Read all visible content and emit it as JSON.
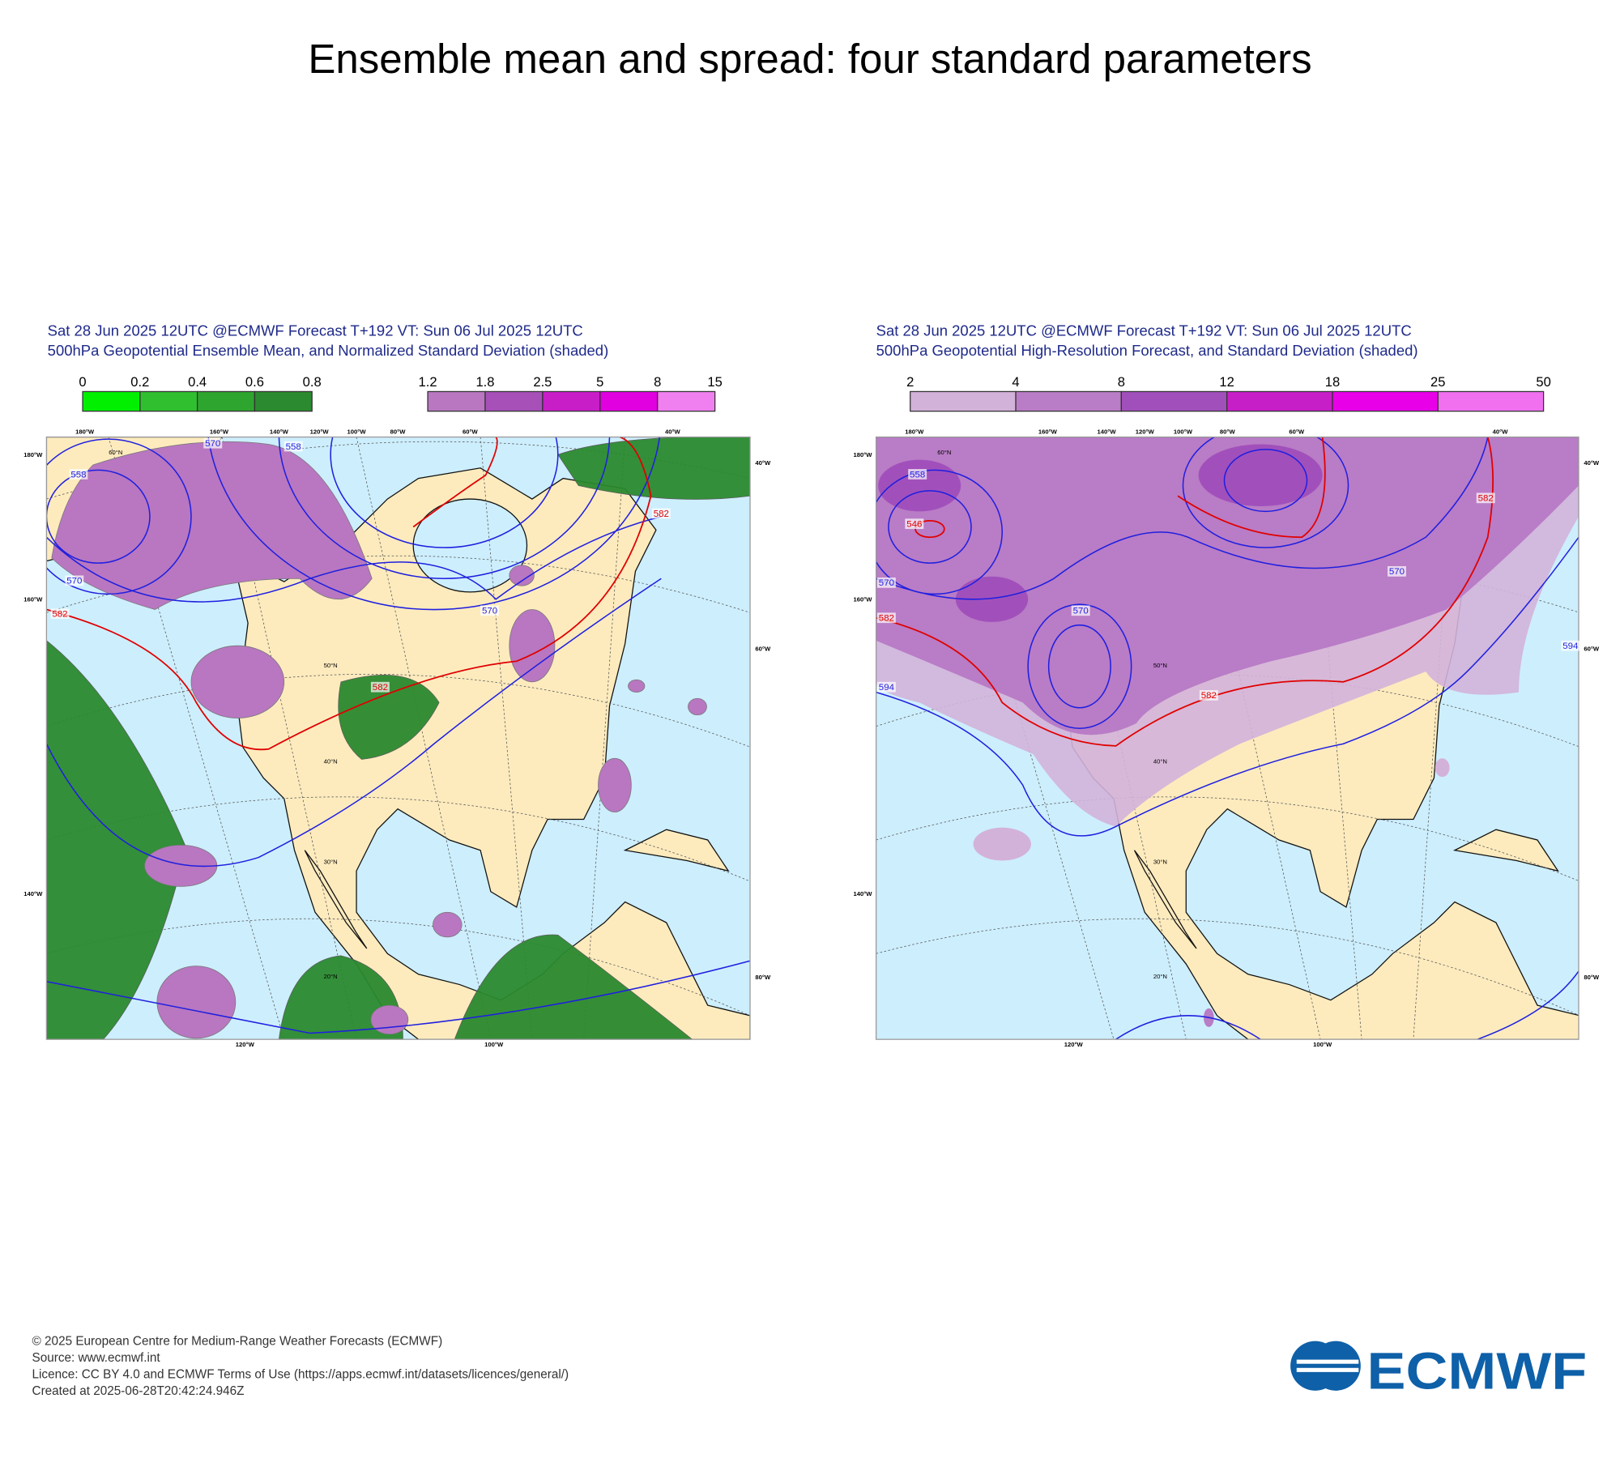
{
  "title": "Ensemble mean and spread: four standard parameters",
  "panels": [
    {
      "header": [
        "Sat 28 Jun 2025 12UTC @ECMWF Forecast T+192 VT: Sun 06 Jul 2025 12UTC",
        "500hPa Geopotential Ensemble Mean, and Normalized Standard Deviation (shaded)"
      ],
      "colorbars": [
        {
          "labels": [
            "0",
            "0.2",
            "0.4",
            "0.6",
            "0.8"
          ],
          "colors": [
            "#00f000",
            "#2fbf2f",
            "#2ea52e",
            "#2b8a2f"
          ]
        },
        {
          "labels": [
            "1.2",
            "1.8",
            "2.5",
            "5",
            "8",
            "15"
          ],
          "colors": [
            "#b877c0",
            "#a650b8",
            "#c81ec8",
            "#e000e0",
            "#f080f0"
          ]
        }
      ],
      "top_lon_labels": [
        "180°W",
        "160°W",
        "140°W",
        "120°W",
        "100°W",
        "80°W",
        "60°W",
        "40°W"
      ],
      "left_lon_labels": [
        "180°W",
        "160°W",
        "140°W"
      ],
      "right_lon_labels": [
        "40°W",
        "60°W",
        "80°W"
      ],
      "bottom_lon_labels": [
        "120°W",
        "100°W"
      ],
      "lat_labels": [
        "60°N",
        "50°N",
        "40°N",
        "30°N",
        "20°N"
      ],
      "contour_labels": [
        "558",
        "570",
        "558",
        "570",
        "582",
        "570",
        "582",
        "582"
      ]
    },
    {
      "header": [
        "Sat 28 Jun 2025 12UTC @ECMWF Forecast T+192 VT: Sun 06 Jul 2025 12UTC",
        "500hPa Geopotential High-Resolution Forecast, and Standard Deviation (shaded)"
      ],
      "colorbars": [
        {
          "labels": [
            "2",
            "4",
            "8",
            "12",
            "18",
            "25",
            "50"
          ],
          "colors": [
            "#d3b2da",
            "#b97cc6",
            "#a150bb",
            "#c71fc8",
            "#e800e8",
            "#f070f0"
          ]
        }
      ],
      "top_lon_labels": [
        "180°W",
        "160°W",
        "140°W",
        "120°W",
        "100°W",
        "80°W",
        "60°W",
        "40°W"
      ],
      "left_lon_labels": [
        "180°W",
        "160°W",
        "140°W"
      ],
      "right_lon_labels": [
        "40°W",
        "60°W",
        "80°W"
      ],
      "bottom_lon_labels": [
        "120°W",
        "100°W"
      ],
      "lat_labels": [
        "60°N",
        "50°N",
        "40°N",
        "30°N",
        "20°N"
      ],
      "contour_labels": [
        "558",
        "546",
        "570",
        "570",
        "582",
        "582",
        "594",
        "594",
        "582",
        "570"
      ]
    }
  ],
  "footer": [
    "© 2025 European Centre for Medium-Range Weather Forecasts (ECMWF)",
    "Source: www.ecmwf.int",
    "Licence: CC BY 4.0 and ECMWF Terms of Use (https://apps.ecmwf.int/datasets/licences/general/)",
    "Created at 2025-06-28T20:42:24.946Z"
  ],
  "logo": "ECMWF"
}
